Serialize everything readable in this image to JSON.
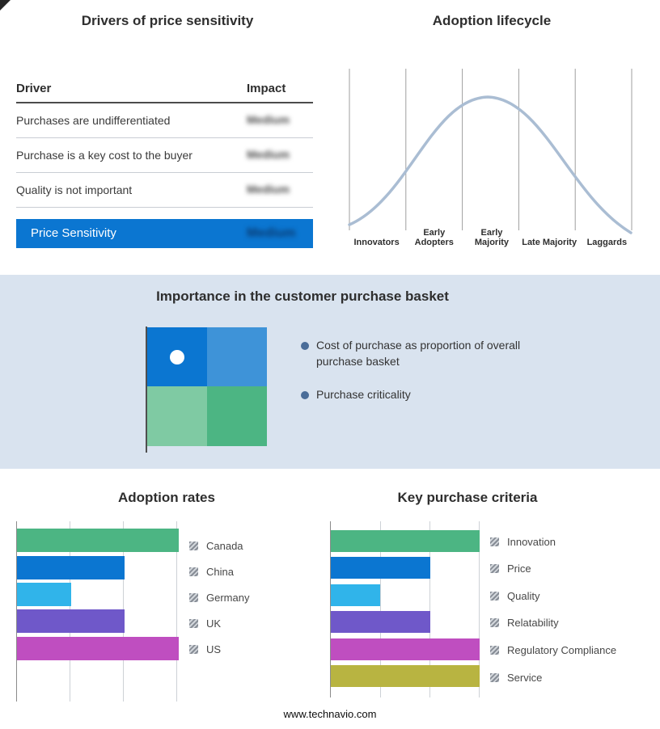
{
  "colors": {
    "accent_blue": "#0b76d1",
    "band_background": "#d9e3ef",
    "curve": "#aabdd3"
  },
  "drivers": {
    "title": "Drivers of price sensitivity",
    "table": {
      "col_driver": "Driver",
      "col_impact": "Impact",
      "rows": [
        {
          "driver": "Purchases are undifferentiated",
          "impact": "Medium"
        },
        {
          "driver": "Purchase is a key cost to the buyer",
          "impact": "Medium"
        },
        {
          "driver": "Quality is not important",
          "impact": "Medium"
        }
      ],
      "highlight": {
        "driver": "Price Sensitivity",
        "impact": "Medium"
      }
    }
  },
  "lifecycle": {
    "title": "Adoption lifecycle",
    "stages": [
      "Innovators",
      "Early Adopters",
      "Early Majority",
      "Late Majority",
      "Laggards"
    ]
  },
  "basket": {
    "title": "Importance in the customer purchase basket",
    "bullets": [
      "Cost of purchase as proportion of overall purchase basket",
      "Purchase criticality"
    ],
    "quadrant_colors": [
      "#0b76d1",
      "#3e93d8",
      "#7fcaa3",
      "#4cb583"
    ]
  },
  "chart_data": [
    {
      "id": "adoption_rates",
      "type": "bar",
      "orientation": "horizontal",
      "title": "Adoption rates",
      "categories": [
        "Canada",
        "China",
        "Germany",
        "UK",
        "US"
      ],
      "values": [
        3,
        2,
        1,
        2,
        3
      ],
      "colors": [
        "#4cb583",
        "#0b76d1",
        "#30b4ea",
        "#6f58c9",
        "#bf4ec0"
      ],
      "xlim": [
        0,
        3
      ],
      "grid": true,
      "legend_position": "right"
    },
    {
      "id": "key_purchase_criteria",
      "type": "bar",
      "orientation": "horizontal",
      "title": "Key purchase criteria",
      "categories": [
        "Innovation",
        "Price",
        "Quality",
        "Relatability",
        "Regulatory Compliance",
        "Service"
      ],
      "values": [
        3,
        2,
        1,
        2,
        3,
        3
      ],
      "colors": [
        "#4cb583",
        "#0b76d1",
        "#30b4ea",
        "#6f58c9",
        "#bf4ec0",
        "#b8b441"
      ],
      "xlim": [
        0,
        3
      ],
      "grid": true,
      "legend_position": "right"
    },
    {
      "id": "adoption_lifecycle",
      "type": "line",
      "title": "Adoption lifecycle",
      "categories": [
        "Innovators",
        "Early Adopters",
        "Early Majority",
        "Late Majority",
        "Laggards"
      ],
      "values": [
        0.1,
        0.55,
        1.0,
        0.55,
        0.1
      ],
      "description": "Bell-shaped adoption curve peaking at Early Majority",
      "grid": true
    }
  ],
  "footer": {
    "url": "www.technavio.com"
  }
}
